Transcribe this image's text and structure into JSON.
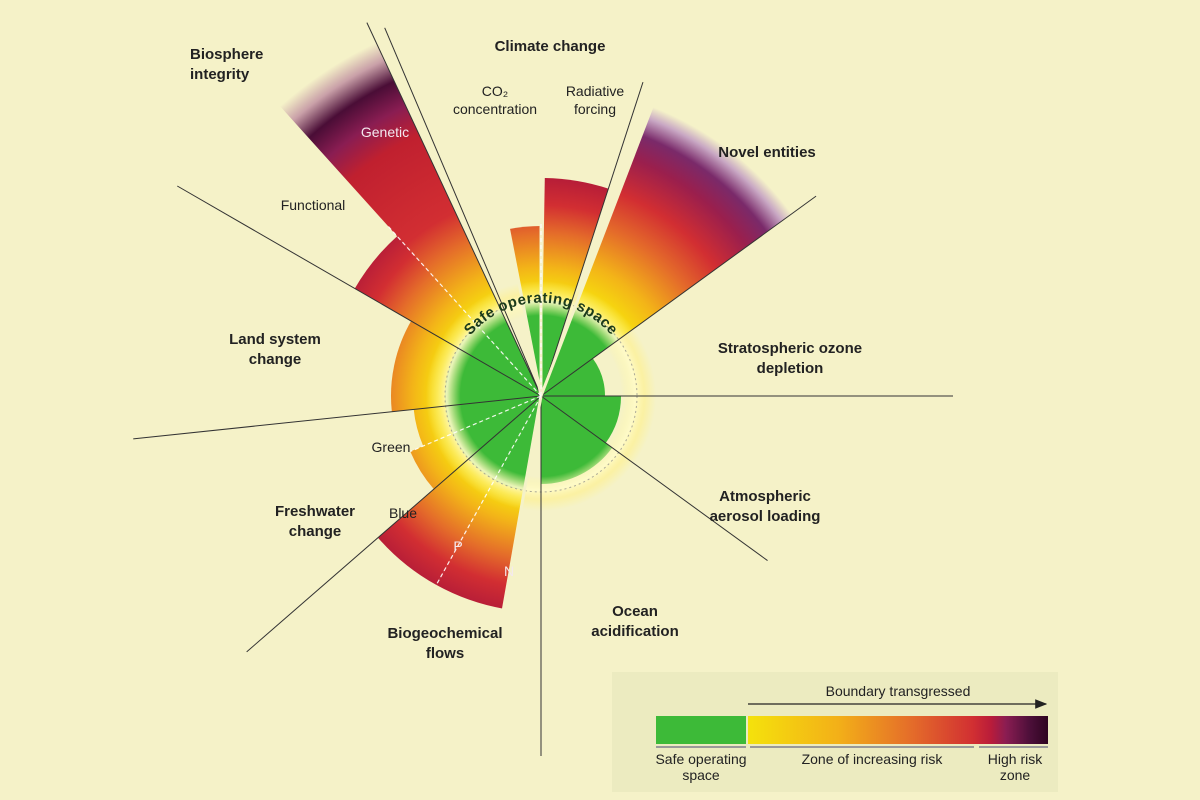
{
  "center_label": "Safe operating space",
  "boundaries": {
    "climate_change": "Climate change",
    "co2": "CO₂\nconcentration",
    "radiative": "Radiative\nforcing",
    "novel": "Novel entities",
    "ozone": "Stratospheric ozone\ndepletion",
    "aerosol": "Atmospheric\naerosol loading",
    "ocean": "Ocean\nacidification",
    "biogeo": "Biogeochemical\nflows",
    "p": "P",
    "n": "N",
    "freshwater": "Freshwater\nchange",
    "blue": "Blue",
    "green": "Green",
    "land": "Land system\nchange",
    "functional": "Functional",
    "biosphere": "Biosphere\nintegrity",
    "genetic": "Genetic"
  },
  "legend": {
    "arrow_label": "Boundary transgressed",
    "safe": "Safe operating\nspace",
    "risk": "Zone of increasing risk",
    "high": "High risk\nzone"
  },
  "colors": {
    "background": "#f5f2c8",
    "safe": "#3dba38",
    "yellow": "#f4e20c",
    "orange": "#e46b2a",
    "red": "#d12f32",
    "high_risk": "#2e0420"
  }
}
